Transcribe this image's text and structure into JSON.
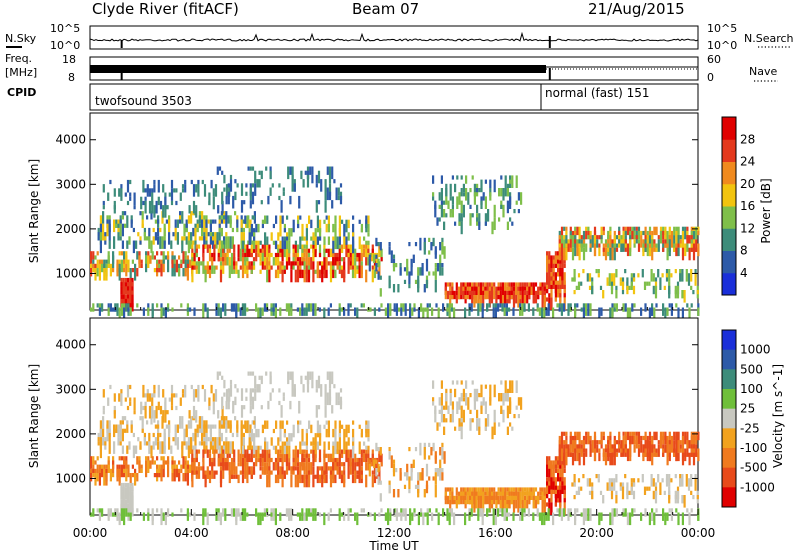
{
  "header": {
    "station": "Clyde River (fitACF)",
    "beam": "Beam 07",
    "date": "21/Aug/2015"
  },
  "params": {
    "nsky_label": "N.Sky",
    "nsearch_label": "N.Search",
    "freq_label_1": "Freq.",
    "freq_label_2": "[MHz]",
    "nave_label": "Nave",
    "cpid_label": "CPID",
    "nsky_ticks": [
      "10^5",
      "10^0"
    ],
    "nsearch_ticks": [
      "10^5",
      "10^0"
    ],
    "freq_ticks": [
      "18",
      "8"
    ],
    "nave_ticks": [
      "60",
      "0"
    ],
    "cpid_segments": [
      {
        "label": "twofsound 3503",
        "start_hour": 0
      },
      {
        "label": "normal (fast) 151",
        "start_hour": 18.0
      }
    ]
  },
  "chart_data": [
    {
      "type": "heatmap",
      "name": "power",
      "ylabel": "Slant Range [km]",
      "yticks": [
        1000,
        2000,
        3000,
        4000
      ],
      "ylim": [
        180,
        4600
      ],
      "xlim_hours": [
        0,
        24
      ],
      "colorbar": {
        "label": "Power [dB]",
        "ticks": [
          "4",
          "8",
          "12",
          "16",
          "20",
          "24",
          "28"
        ],
        "range": [
          0,
          32
        ],
        "colors": [
          "#1a2fd9",
          "#2d5aa8",
          "#3d8c7a",
          "#7fbf4a",
          "#f2c40f",
          "#f08a1e",
          "#e4391d",
          "#e00000"
        ]
      }
    },
    {
      "type": "heatmap",
      "name": "velocity",
      "ylabel": "Slant Range [km]",
      "yticks": [
        1000,
        2000,
        3000,
        4000
      ],
      "ylim": [
        180,
        4600
      ],
      "xlim_hours": [
        0,
        24
      ],
      "xticks": [
        "00:00",
        "04:00",
        "08:00",
        "12:00",
        "16:00",
        "20:00",
        "00:00"
      ],
      "xlabel": "Time UT",
      "colorbar": {
        "label": "Velocity [m s^-1]",
        "ticks": [
          "1000",
          "500",
          "100",
          "25",
          "-25",
          "-100",
          "-500",
          "-1000"
        ],
        "colors": [
          "#1a2fd9",
          "#2d5aa8",
          "#3d8c7a",
          "#6fbf3a",
          "#c8c8c0",
          "#f2a21e",
          "#f07a1e",
          "#e84a1a",
          "#e00000"
        ]
      }
    }
  ]
}
